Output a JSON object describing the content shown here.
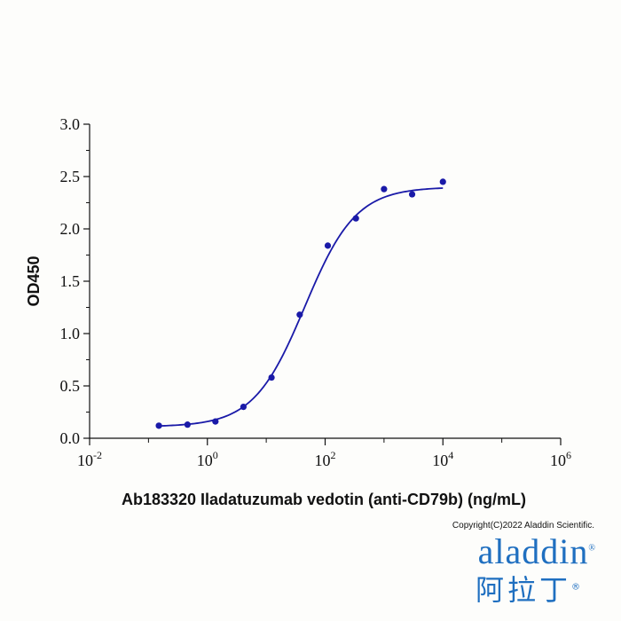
{
  "chart_data": {
    "type": "scatter",
    "title": "",
    "xlabel": "Ab183320 Iladatuzumab vedotin (anti-CD79b) (ng/mL)",
    "ylabel": "OD450",
    "x_scale": "log10",
    "xlim": [
      0.01,
      1000000
    ],
    "ylim": [
      0,
      3.0
    ],
    "x_ticks": [
      {
        "base": "10",
        "exp": "-2"
      },
      {
        "base": "10",
        "exp": "0"
      },
      {
        "base": "10",
        "exp": "2"
      },
      {
        "base": "10",
        "exp": "4"
      },
      {
        "base": "10",
        "exp": "6"
      }
    ],
    "y_ticks": [
      "0.0",
      "0.5",
      "1.0",
      "1.5",
      "2.0",
      "2.5",
      "3.0"
    ],
    "grid": false,
    "legend": "none",
    "series": [
      {
        "color": "#1a1aa8",
        "points": [
          {
            "x": 0.15,
            "y": 0.12
          },
          {
            "x": 0.46,
            "y": 0.13
          },
          {
            "x": 1.37,
            "y": 0.16
          },
          {
            "x": 4.1,
            "y": 0.3
          },
          {
            "x": 12.3,
            "y": 0.58
          },
          {
            "x": 37,
            "y": 1.18
          },
          {
            "x": 111,
            "y": 1.84
          },
          {
            "x": 333,
            "y": 2.1
          },
          {
            "x": 1000,
            "y": 2.38
          },
          {
            "x": 3000,
            "y": 2.33
          },
          {
            "x": 10000,
            "y": 2.45
          }
        ],
        "fit": {
          "type": "4PL",
          "bottom": 0.11,
          "top": 2.4,
          "ec50": 45,
          "hill": 1.0
        }
      }
    ]
  },
  "footer": {
    "copyright": "Copyright(C)2022 Aladdin Scientific.",
    "logo_latin": "aladdin",
    "logo_cjk": "阿拉丁",
    "registered": "®"
  }
}
